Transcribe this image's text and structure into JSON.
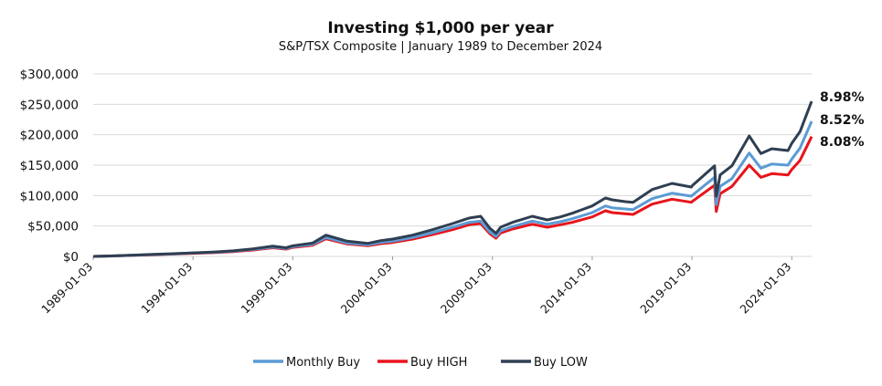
{
  "chart_data": {
    "type": "line",
    "title": "Investing $1,000 per year",
    "subtitle": "S&P/TSX Composite | January 1989 to December 2024",
    "xlabel": "",
    "ylabel": "",
    "x_ticks": [
      "1989-01-03",
      "1994-01-03",
      "1999-01-03",
      "2004-01-03",
      "2009-01-03",
      "2014-01-03",
      "2019-01-03",
      "2024-01-03"
    ],
    "y_ticks": [
      "$0",
      "$50,000",
      "$100,000",
      "$150,000",
      "$200,000",
      "$250,000",
      "$300,000"
    ],
    "ylim": [
      0,
      300000
    ],
    "xlim": [
      "1989-01-03",
      "2024-12-31"
    ],
    "grid": true,
    "legend_position": "bottom",
    "series": [
      {
        "name": "Monthly Buy",
        "color": "#5b9bd5",
        "end_label": "8.52%",
        "x": [
          "1989-01-03",
          "1990-01-03",
          "1991-01-03",
          "1992-01-03",
          "1993-01-03",
          "1994-01-03",
          "1995-01-03",
          "1996-01-03",
          "1997-01-03",
          "1998-01-03",
          "1998-09-01",
          "1999-01-03",
          "2000-01-03",
          "2000-08-31",
          "2001-09-21",
          "2002-10-09",
          "2003-06-01",
          "2004-01-03",
          "2005-01-03",
          "2006-01-03",
          "2007-01-03",
          "2007-10-31",
          "2008-06-01",
          "2008-11-20",
          "2009-03-09",
          "2009-06-01",
          "2010-01-03",
          "2011-01-03",
          "2011-10-04",
          "2012-06-01",
          "2013-01-03",
          "2014-01-03",
          "2014-09-01",
          "2015-01-03",
          "2015-09-01",
          "2016-01-20",
          "2017-01-03",
          "2018-01-03",
          "2018-12-24",
          "2019-01-03",
          "2020-02-20",
          "2020-03-23",
          "2020-06-01",
          "2021-01-03",
          "2021-11-15",
          "2022-06-16",
          "2023-01-03",
          "2023-10-27",
          "2024-01-03",
          "2024-06-01",
          "2024-12-31"
        ],
        "y": [
          0,
          800,
          2000,
          3100,
          4200,
          5500,
          6700,
          8500,
          11500,
          15500,
          13000,
          16000,
          20000,
          31000,
          22000,
          19000,
          23000,
          25000,
          31000,
          39000,
          48000,
          56000,
          58000,
          40000,
          33000,
          42000,
          49000,
          58000,
          53000,
          57000,
          62000,
          72000,
          83000,
          80000,
          78000,
          77000,
          95000,
          104000,
          99000,
          100000,
          130000,
          85000,
          115000,
          128000,
          170000,
          145000,
          152000,
          150000,
          160000,
          178000,
          222000
        ]
      },
      {
        "name": "Buy HIGH",
        "color": "#e8141b",
        "end_label": "8.08%",
        "x": [
          "1989-01-03",
          "1990-01-03",
          "1991-01-03",
          "1992-01-03",
          "1993-01-03",
          "1994-01-03",
          "1995-01-03",
          "1996-01-03",
          "1997-01-03",
          "1998-01-03",
          "1998-09-01",
          "1999-01-03",
          "2000-01-03",
          "2000-08-31",
          "2001-09-21",
          "2002-10-09",
          "2003-06-01",
          "2004-01-03",
          "2005-01-03",
          "2006-01-03",
          "2007-01-03",
          "2007-10-31",
          "2008-06-01",
          "2008-11-20",
          "2009-03-09",
          "2009-06-01",
          "2010-01-03",
          "2011-01-03",
          "2011-10-04",
          "2012-06-01",
          "2013-01-03",
          "2014-01-03",
          "2014-09-01",
          "2015-01-03",
          "2015-09-01",
          "2016-01-20",
          "2017-01-03",
          "2018-01-03",
          "2018-12-24",
          "2019-01-03",
          "2020-02-20",
          "2020-03-23",
          "2020-06-01",
          "2021-01-03",
          "2021-11-15",
          "2022-06-16",
          "2023-01-03",
          "2023-10-27",
          "2024-01-03",
          "2024-06-01",
          "2024-12-31"
        ],
        "y": [
          0,
          750,
          1900,
          2900,
          3900,
          5100,
          6200,
          7800,
          10500,
          14300,
          12000,
          14800,
          18500,
          29000,
          20500,
          17500,
          21000,
          23000,
          28500,
          36000,
          44000,
          52000,
          54000,
          37000,
          30000,
          38500,
          45000,
          53000,
          48000,
          52000,
          56000,
          65000,
          75000,
          72000,
          70000,
          69000,
          86000,
          94000,
          89000,
          90000,
          117000,
          74000,
          103000,
          115000,
          150000,
          130000,
          136000,
          134000,
          143000,
          158000,
          197000
        ]
      },
      {
        "name": "Buy LOW",
        "color": "#2f3f52",
        "end_label": "8.98%",
        "x": [
          "1989-01-03",
          "1990-01-03",
          "1991-01-03",
          "1992-01-03",
          "1993-01-03",
          "1994-01-03",
          "1995-01-03",
          "1996-01-03",
          "1997-01-03",
          "1998-01-03",
          "1998-09-01",
          "1999-01-03",
          "2000-01-03",
          "2000-08-31",
          "2001-09-21",
          "2002-10-09",
          "2003-06-01",
          "2004-01-03",
          "2005-01-03",
          "2006-01-03",
          "2007-01-03",
          "2007-10-31",
          "2008-06-01",
          "2008-11-20",
          "2009-03-09",
          "2009-06-01",
          "2010-01-03",
          "2011-01-03",
          "2011-10-04",
          "2012-06-01",
          "2013-01-03",
          "2014-01-03",
          "2014-09-01",
          "2015-01-03",
          "2015-09-01",
          "2016-01-20",
          "2017-01-03",
          "2018-01-03",
          "2018-12-24",
          "2019-01-03",
          "2020-02-20",
          "2020-03-23",
          "2020-06-01",
          "2021-01-03",
          "2021-11-15",
          "2022-06-16",
          "2023-01-03",
          "2023-10-27",
          "2024-01-03",
          "2024-06-01",
          "2024-12-31"
        ],
        "y": [
          0,
          850,
          2100,
          3300,
          4500,
          5900,
          7200,
          9200,
          12500,
          17000,
          14200,
          17500,
          22000,
          35000,
          25000,
          21500,
          26000,
          28500,
          35000,
          44000,
          54000,
          63000,
          66000,
          46000,
          38000,
          48000,
          56000,
          66000,
          60000,
          65000,
          71000,
          83000,
          96000,
          93000,
          90000,
          89000,
          110000,
          120000,
          114000,
          116000,
          149000,
          99000,
          134000,
          149000,
          198000,
          169000,
          177000,
          174000,
          186000,
          205000,
          255000
        ]
      }
    ]
  }
}
